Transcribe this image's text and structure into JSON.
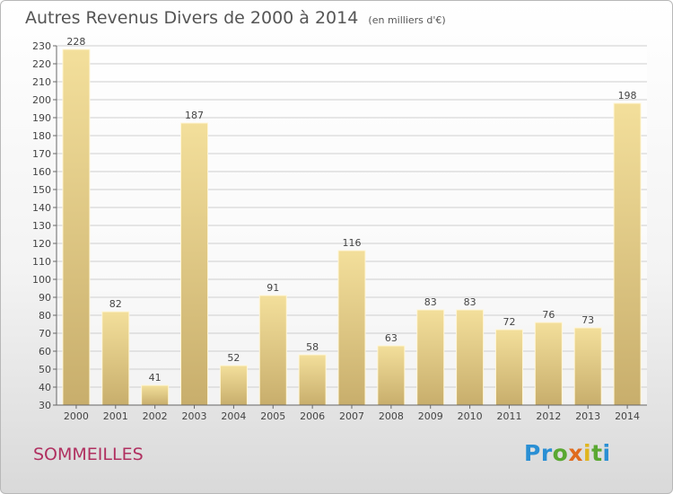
{
  "title": "Autres Revenus Divers de 2000 à 2014",
  "unit_note": "(en milliers d'€)",
  "place": "SOMMEILLES",
  "logo": {
    "text": "Proxiti",
    "letters": [
      {
        "ch": "P",
        "color": "#2a8fd4"
      },
      {
        "ch": "r",
        "color": "#2a8fd4"
      },
      {
        "ch": "o",
        "color": "#5aa832"
      },
      {
        "ch": "x",
        "color": "#e06c1e"
      },
      {
        "ch": "i",
        "color": "#e0b51e"
      },
      {
        "ch": "t",
        "color": "#5aa832"
      },
      {
        "ch": "i",
        "color": "#2a8fd4"
      }
    ]
  },
  "colors": {
    "bar_top": "#f3df9b",
    "bar_bottom": "#c8ae6c",
    "grid": "#cfcfcf",
    "axis": "#666666",
    "text": "#444444"
  },
  "chart_data": {
    "type": "bar",
    "title": "Autres Revenus Divers de 2000 à 2014",
    "categories": [
      "2000",
      "2001",
      "2002",
      "2003",
      "2004",
      "2005",
      "2006",
      "2007",
      "2008",
      "2009",
      "2010",
      "2011",
      "2012",
      "2013",
      "2014"
    ],
    "values": [
      228,
      82,
      41,
      187,
      52,
      91,
      58,
      116,
      63,
      83,
      83,
      72,
      76,
      73,
      198
    ],
    "ylim": [
      30,
      230
    ],
    "ytick_step": 10,
    "grid": true
  }
}
